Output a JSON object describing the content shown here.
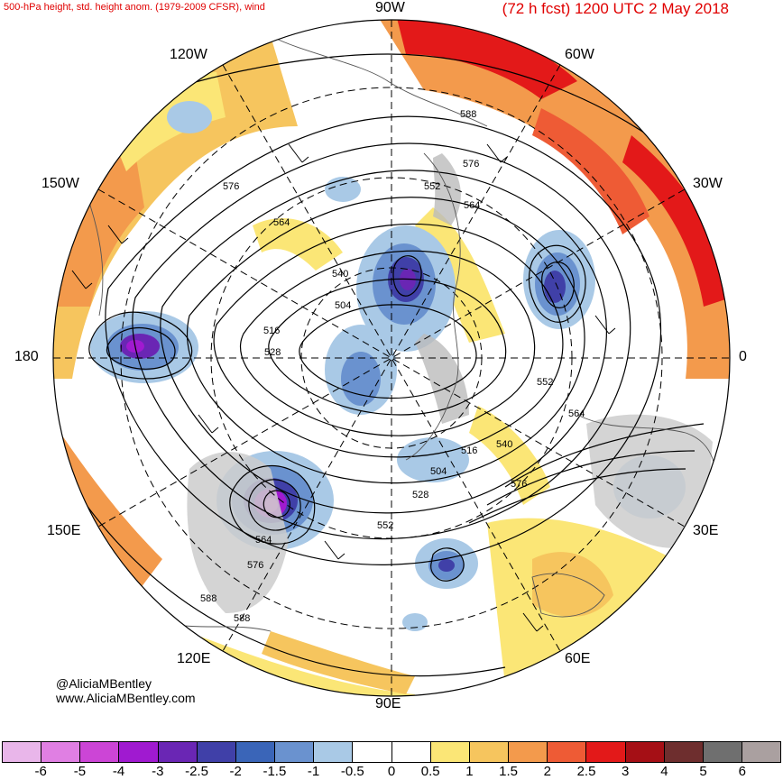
{
  "header": {
    "left_title": "500-hPa height, std. height anom. (1979-2009 CFSR), wind",
    "right_title": "(72 h fcst) 1200 UTC 2 May 2018"
  },
  "longitude_labels": {
    "lon_90w": "90W",
    "lon_60w": "60W",
    "lon_120w": "120W",
    "lon_30w": "30W",
    "lon_150w": "150W",
    "lon_180": "180",
    "lon_0": "0",
    "lon_150e": "150E",
    "lon_30e": "30E",
    "lon_120e": "120E",
    "lon_60e": "60E",
    "lon_90e": "90E"
  },
  "contour_labels": [
    "588",
    "576",
    "552",
    "564",
    "576",
    "564",
    "540",
    "504",
    "516",
    "528",
    "552",
    "564",
    "540",
    "516",
    "504",
    "576",
    "528",
    "552",
    "564",
    "576",
    "588",
    "588"
  ],
  "credits": {
    "handle": "@AliciaMBentley",
    "website": "www.AliciaMBentley.com"
  },
  "colorbar": {
    "ticks": [
      "-6",
      "-5",
      "-4",
      "-3",
      "-2.5",
      "-2",
      "-1.5",
      "-1",
      "-0.5",
      "0",
      "0.5",
      "1",
      "1.5",
      "2",
      "2.5",
      "3",
      "4",
      "5",
      "6"
    ],
    "colors": [
      "#e9b6ea",
      "#e07fe3",
      "#cc45d6",
      "#a01ad0",
      "#6a26b4",
      "#4040a8",
      "#3a65b8",
      "#6a92cf",
      "#a9c9e6",
      "#ffffff",
      "#ffffff",
      "#fbe676",
      "#f6c55e",
      "#f39a4c",
      "#ee5b35",
      "#e31919",
      "#a50f15",
      "#6e2e2e",
      "#6f6f6f",
      "#aaa0a0"
    ]
  }
}
